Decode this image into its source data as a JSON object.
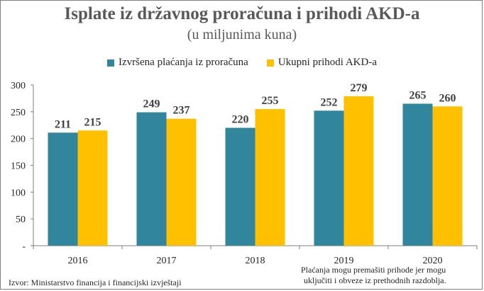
{
  "chart_data": {
    "type": "bar",
    "title": "Isplate iz državnog proračuna i prihodi AKD-a",
    "subtitle": "(u miljunima kuna)",
    "categories": [
      "2016",
      "2017",
      "2018",
      "2019",
      "2020"
    ],
    "series": [
      {
        "name": "Izvršena plaćanja iz proračuna",
        "values": [
          211,
          249,
          220,
          252,
          265
        ],
        "color": "#31859c"
      },
      {
        "name": "Ukupni prihodi AKD-a",
        "values": [
          215,
          237,
          255,
          279,
          260
        ],
        "color": "#ffc000"
      }
    ],
    "yticks": [
      "-",
      "50",
      "100",
      "150",
      "200",
      "250",
      "300"
    ],
    "ylim": [
      0,
      300
    ],
    "grid": false,
    "legend_position": "top"
  },
  "footer": {
    "source": "Izvor: Ministarstvo financija i financijski izvještaji",
    "note_line1": "Plaćanja mogu premašiti prihode jer mogu",
    "note_line2": "uključiti i obveze iz prethodnih razdoblja."
  }
}
